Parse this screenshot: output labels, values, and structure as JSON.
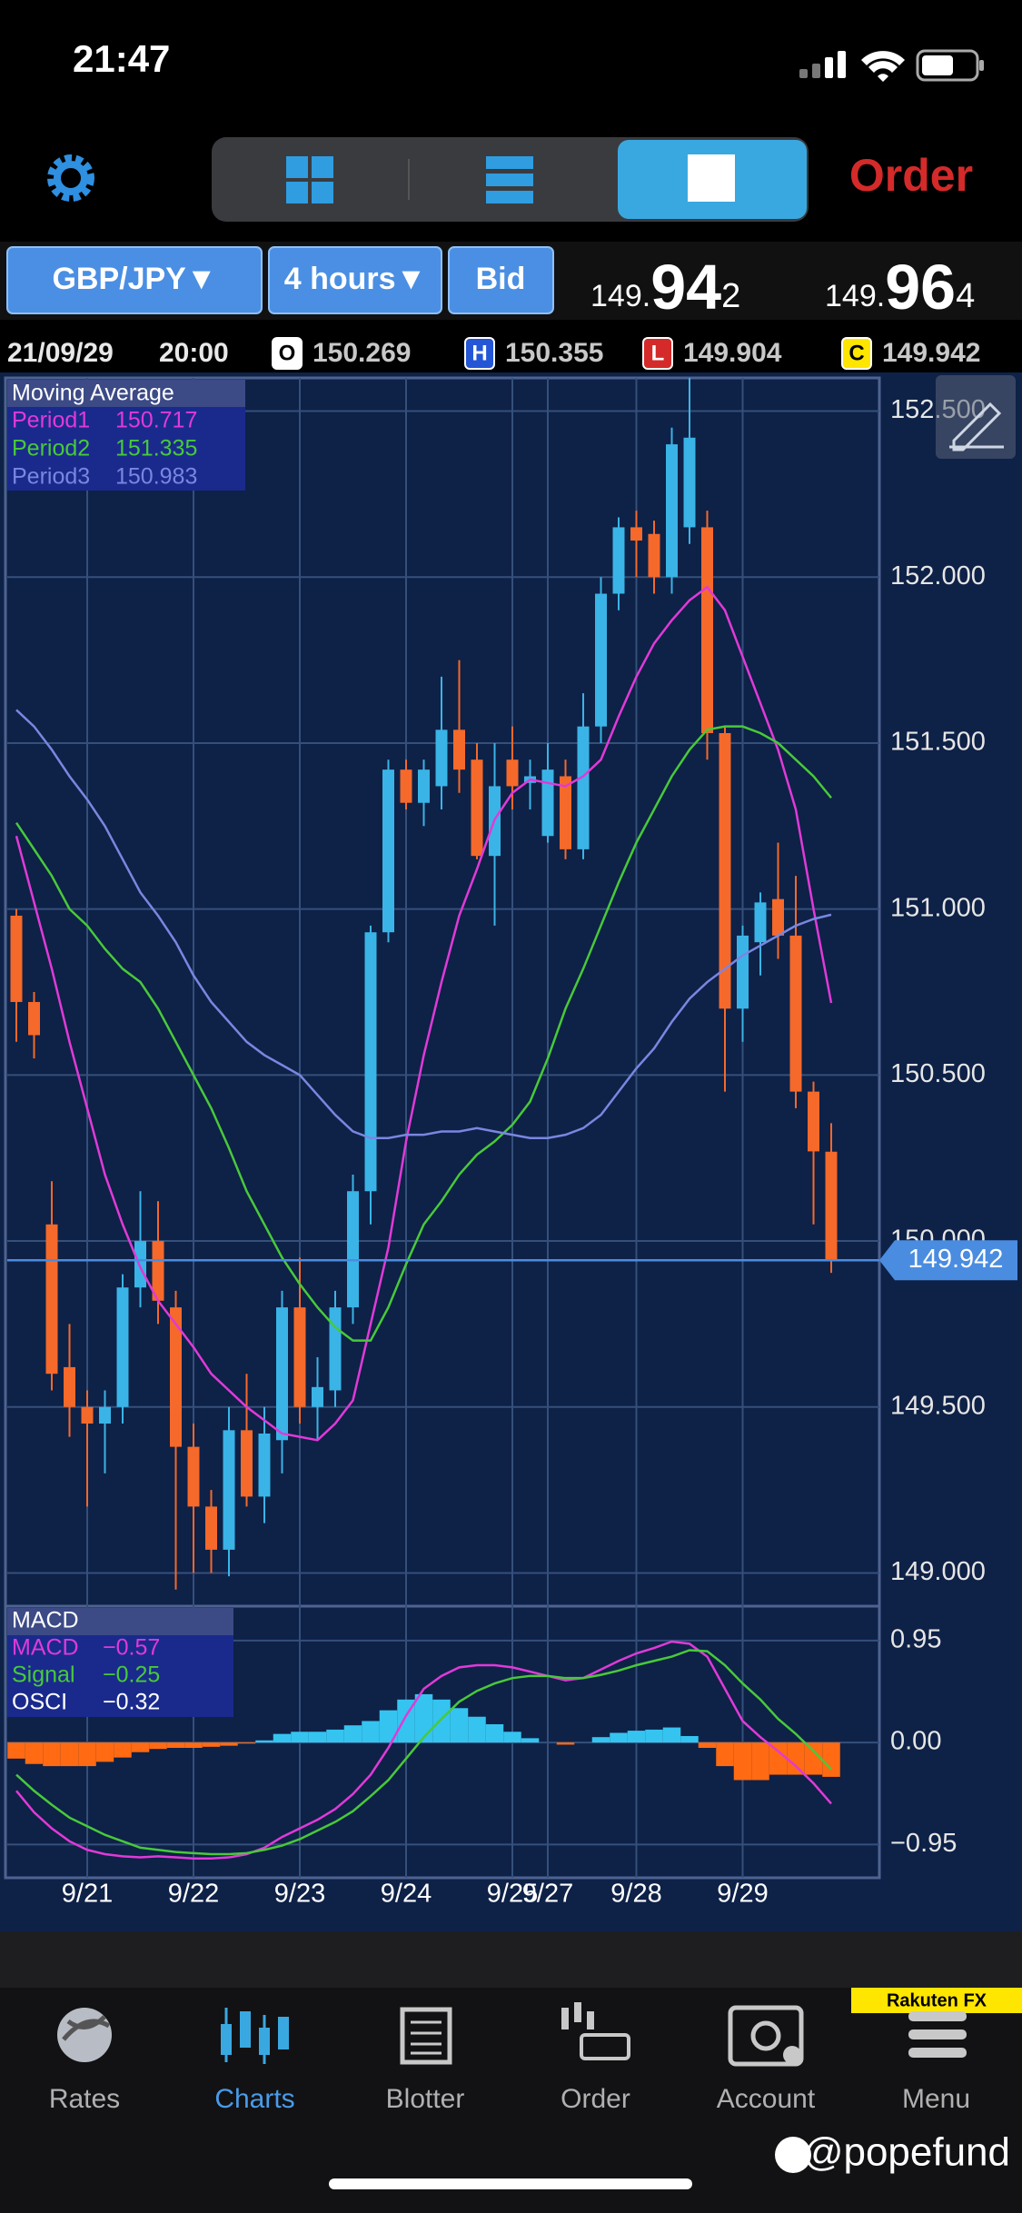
{
  "status_bar": {
    "time": "21:47"
  },
  "toolbar": {
    "order": "Order"
  },
  "controls": {
    "pair": "GBP/JPY▼",
    "timeframe": "4 hours▼",
    "side": "Bid"
  },
  "quotes": {
    "bid": {
      "lead": "149.",
      "big": "94",
      "pip": "2"
    },
    "ask": {
      "lead": "149.",
      "big": "96",
      "pip": "4"
    }
  },
  "info": {
    "date": "21/09/29",
    "time": "20:00",
    "badges": [
      "O",
      "H",
      "L",
      "C"
    ]
  },
  "chart_data": [
    {
      "type": "candlestick",
      "title": "Moving Average",
      "categories": [
        null,
        null,
        null,
        null,
        "9/21",
        null,
        null,
        null,
        null,
        null,
        "9/22",
        null,
        null,
        null,
        null,
        null,
        "9/23",
        null,
        null,
        null,
        null,
        null,
        "9/24",
        null,
        null,
        null,
        null,
        null,
        "9/25",
        null,
        "9/27",
        null,
        null,
        null,
        null,
        "9/28",
        null,
        null,
        null,
        null,
        null,
        "9/29",
        null,
        null,
        null,
        null,
        null
      ],
      "open": [
        150.98,
        150.72,
        150.05,
        149.62,
        149.5,
        149.45,
        149.5,
        149.86,
        150.0,
        149.8,
        149.38,
        149.2,
        149.07,
        149.43,
        149.23,
        149.4,
        149.8,
        149.5,
        149.55,
        149.8,
        150.15,
        150.93,
        151.42,
        151.32,
        151.37,
        151.54,
        151.45,
        151.16,
        151.45,
        151.38,
        151.22,
        151.4,
        151.18,
        151.55,
        151.95,
        152.15,
        152.13,
        152.0,
        152.15,
        152.15,
        151.53,
        150.7,
        150.9,
        151.03,
        150.92,
        150.45,
        150.269
      ],
      "high": [
        151.0,
        150.75,
        150.18,
        149.75,
        149.55,
        149.55,
        149.9,
        150.15,
        150.12,
        149.85,
        149.45,
        149.25,
        149.5,
        149.6,
        149.5,
        149.85,
        149.95,
        149.65,
        149.85,
        150.2,
        150.95,
        151.45,
        151.45,
        151.45,
        151.7,
        151.75,
        151.5,
        151.5,
        151.55,
        151.45,
        151.5,
        151.45,
        151.65,
        152.0,
        152.18,
        152.2,
        152.17,
        152.45,
        152.6,
        152.2,
        151.55,
        150.95,
        151.05,
        151.2,
        151.1,
        150.48,
        150.355
      ],
      "low": [
        150.6,
        150.55,
        149.55,
        149.41,
        149.2,
        149.3,
        149.45,
        149.8,
        149.75,
        148.95,
        149.0,
        149.0,
        148.99,
        149.2,
        149.15,
        149.3,
        149.45,
        149.4,
        149.5,
        149.75,
        150.05,
        150.9,
        151.3,
        151.25,
        151.3,
        151.35,
        151.15,
        150.95,
        151.3,
        151.3,
        151.2,
        151.15,
        151.15,
        151.5,
        151.9,
        152.0,
        151.95,
        151.95,
        152.1,
        151.45,
        150.45,
        150.6,
        150.8,
        150.85,
        150.4,
        150.05,
        149.904
      ],
      "close": [
        150.72,
        150.62,
        149.6,
        149.5,
        149.45,
        149.5,
        149.86,
        150.0,
        149.82,
        149.38,
        149.2,
        149.07,
        149.43,
        149.23,
        149.42,
        149.8,
        149.5,
        149.56,
        149.8,
        150.15,
        150.93,
        151.42,
        151.32,
        151.42,
        151.54,
        151.42,
        151.16,
        151.37,
        151.37,
        151.4,
        151.42,
        151.18,
        151.55,
        151.95,
        152.15,
        152.11,
        152.0,
        152.4,
        152.42,
        151.53,
        150.7,
        150.92,
        151.02,
        150.92,
        150.45,
        150.27,
        149.942
      ],
      "up_color": "#3ab4e6",
      "down_color": "#f5692a",
      "current_color": "#4a8ce0",
      "ylim": [
        148.9,
        152.6
      ],
      "yticks": [
        {
          "value": 149,
          "label": "149.000"
        },
        {
          "value": 149.5,
          "label": "149.500"
        },
        {
          "value": 150,
          "label": "150.000"
        },
        {
          "value": 150.5,
          "label": "150.500"
        },
        {
          "value": 151,
          "label": "151.000"
        },
        {
          "value": 151.5,
          "label": "151.500"
        },
        {
          "value": 152,
          "label": "152.000"
        },
        {
          "value": 152.5,
          "label": "152.500"
        }
      ],
      "grid": true,
      "overlays": [
        {
          "name": "Period1",
          "color": "#e03ad8",
          "values": [
            151.22,
            151.02,
            150.82,
            150.6,
            150.4,
            150.2,
            150.05,
            149.92,
            149.82,
            149.75,
            149.68,
            149.6,
            149.55,
            149.5,
            149.46,
            149.42,
            149.41,
            149.4,
            149.45,
            149.52,
            149.75,
            149.98,
            150.3,
            150.56,
            150.78,
            150.98,
            151.12,
            151.27,
            151.35,
            151.39,
            151.38,
            151.37,
            151.4,
            151.45,
            151.58,
            151.7,
            151.8,
            151.87,
            151.93,
            151.97,
            151.9,
            151.76,
            151.62,
            151.48,
            151.3,
            151.0,
            150.717
          ]
        },
        {
          "name": "Period2",
          "color": "#48c93a",
          "values": [
            151.26,
            151.18,
            151.1,
            151.0,
            150.95,
            150.88,
            150.82,
            150.78,
            150.7,
            150.6,
            150.5,
            150.4,
            150.28,
            150.15,
            150.05,
            149.95,
            149.87,
            149.8,
            149.74,
            149.7,
            149.7,
            149.8,
            149.93,
            150.05,
            150.12,
            150.2,
            150.26,
            150.3,
            150.35,
            150.42,
            150.55,
            150.7,
            150.82,
            150.95,
            151.08,
            151.2,
            151.3,
            151.4,
            151.48,
            151.54,
            151.55,
            151.55,
            151.53,
            151.5,
            151.45,
            151.4,
            151.335
          ]
        },
        {
          "name": "Period3",
          "color": "#7a86e0",
          "values": [
            151.6,
            151.55,
            151.48,
            151.4,
            151.33,
            151.25,
            151.15,
            151.05,
            150.98,
            150.9,
            150.8,
            150.72,
            150.66,
            150.6,
            150.56,
            150.53,
            150.5,
            150.44,
            150.38,
            150.33,
            150.31,
            150.31,
            150.32,
            150.32,
            150.33,
            150.33,
            150.34,
            150.33,
            150.32,
            150.31,
            150.31,
            150.32,
            150.34,
            150.38,
            150.45,
            150.52,
            150.58,
            150.66,
            150.73,
            150.78,
            150.82,
            150.86,
            150.89,
            150.92,
            150.95,
            150.97,
            150.983
          ]
        }
      ]
    },
    {
      "type": "macd",
      "title": "MACD",
      "ylim": [
        -1.26,
        1.27
      ],
      "yticks": [
        0.95,
        {
          "value": 0,
          "label": "0.00"
        },
        {
          "value": -0.95,
          "label": "−0.95"
        }
      ],
      "grid": true,
      "series": [
        {
          "name": "MACD",
          "type": "line",
          "color": "#e03ad8",
          "readout": "−0.57",
          "values": [
            -0.45,
            -0.65,
            -0.8,
            -0.92,
            -1.0,
            -1.04,
            -1.06,
            -1.07,
            -1.06,
            -1.07,
            -1.08,
            -1.08,
            -1.07,
            -1.04,
            -0.98,
            -0.88,
            -0.8,
            -0.72,
            -0.62,
            -0.48,
            -0.3,
            -0.05,
            0.25,
            0.5,
            0.62,
            0.7,
            0.72,
            0.72,
            0.7,
            0.66,
            0.62,
            0.58,
            0.6,
            0.68,
            0.76,
            0.83,
            0.88,
            0.94,
            0.92,
            0.8,
            0.5,
            0.2,
            0.05,
            -0.08,
            -0.22,
            -0.38,
            -0.57
          ]
        },
        {
          "name": "Signal",
          "type": "line",
          "color": "#48c93a",
          "readout": "−0.25",
          "values": [
            -0.3,
            -0.45,
            -0.58,
            -0.7,
            -0.78,
            -0.86,
            -0.92,
            -0.98,
            -1.0,
            -1.02,
            -1.03,
            -1.04,
            -1.04,
            -1.03,
            -1.0,
            -0.96,
            -0.9,
            -0.82,
            -0.74,
            -0.64,
            -0.5,
            -0.35,
            -0.15,
            0.05,
            0.22,
            0.38,
            0.48,
            0.55,
            0.6,
            0.62,
            0.62,
            0.6,
            0.6,
            0.63,
            0.67,
            0.72,
            0.76,
            0.8,
            0.86,
            0.85,
            0.72,
            0.55,
            0.4,
            0.22,
            0.08,
            -0.08,
            -0.25
          ]
        },
        {
          "name": "OSCI",
          "type": "bar",
          "color": "#35c4f0",
          "negative_color": "#ff6a13",
          "readout": "−0.32",
          "values": [
            -0.15,
            -0.2,
            -0.22,
            -0.22,
            -0.22,
            -0.18,
            -0.14,
            -0.09,
            -0.06,
            -0.05,
            -0.05,
            -0.04,
            -0.03,
            -0.01,
            0.02,
            0.08,
            0.1,
            0.1,
            0.12,
            0.16,
            0.2,
            0.3,
            0.4,
            0.45,
            0.4,
            0.32,
            0.24,
            0.17,
            0.1,
            0.04,
            0.0,
            -0.02,
            0.0,
            0.05,
            0.09,
            0.11,
            0.12,
            0.14,
            0.06,
            -0.05,
            -0.22,
            -0.35,
            -0.35,
            -0.3,
            -0.3,
            -0.3,
            -0.32
          ]
        }
      ]
    }
  ],
  "tabs": [
    "Rates",
    "Charts",
    "Blotter",
    "Order",
    "Account",
    "Menu"
  ],
  "brand": "Rakuten FX",
  "watermark": "@popefund"
}
